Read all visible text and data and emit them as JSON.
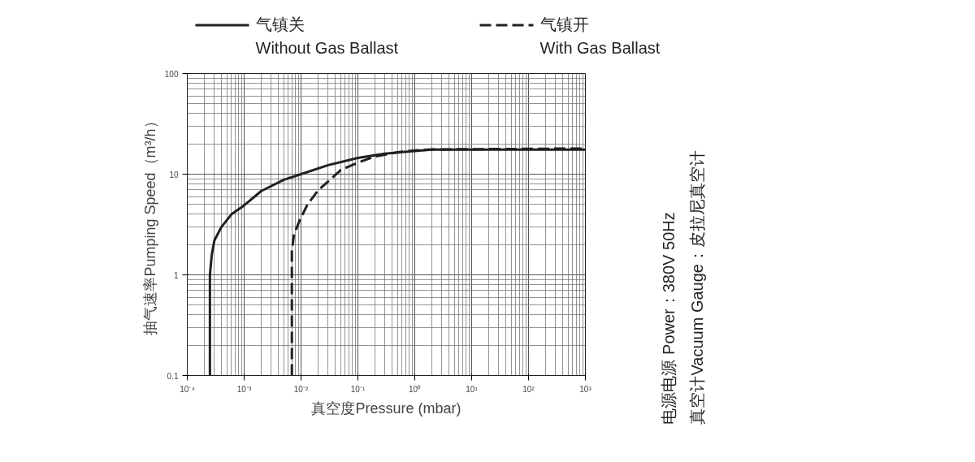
{
  "chart_data": {
    "type": "line",
    "xlabel": "真空度Pressure (mbar)",
    "ylabel": "抽气速率Pumping Speed（m³/h）",
    "log": "xy",
    "grid": true,
    "legend": "top",
    "marker": "none",
    "xlim": [
      0.0001,
      1000
    ],
    "ylim": [
      0.1,
      100
    ],
    "xticks": [
      {
        "value": 0.0001,
        "label": "10⁻⁴"
      },
      {
        "value": 0.001,
        "label": "10⁻³"
      },
      {
        "value": 0.01,
        "label": "10⁻²"
      },
      {
        "value": 0.1,
        "label": "10⁻¹"
      },
      {
        "value": 1,
        "label": "10⁰"
      },
      {
        "value": 10,
        "label": "10¹"
      },
      {
        "value": 100,
        "label": "10²"
      },
      {
        "value": 1000,
        "label": "10³"
      }
    ],
    "yticks": [
      0.1,
      1,
      10,
      100
    ],
    "series": [
      {
        "name": "气镇关\nWithout Gas Ballast",
        "color": "#231f20",
        "line_style": "solid",
        "x": [
          0.00025,
          0.00025,
          0.00027,
          0.0003,
          0.0004,
          0.0006,
          0.001,
          0.002,
          0.005,
          0.01,
          0.03,
          0.1,
          0.3,
          1,
          2,
          1000
        ],
        "values": [
          0.1,
          1,
          1.6,
          2.2,
          3,
          4,
          4.9,
          6.8,
          8.8,
          10,
          12.3,
          14.5,
          16,
          17,
          17.5,
          17.5
        ]
      },
      {
        "name": "气镇开\nWith Gas Ballast",
        "color": "#231f20",
        "line_style": "dashed",
        "x": [
          0.0069,
          0.0069,
          0.0075,
          0.0095,
          0.013,
          0.02,
          0.05,
          0.1,
          0.2,
          0.5,
          1,
          2,
          1000
        ],
        "values": [
          0.1,
          1.7,
          2.5,
          3.5,
          5,
          6.9,
          11,
          13,
          15,
          16.5,
          17.2,
          17.6,
          18
        ]
      }
    ],
    "annotations": [
      "电源电源  Power：380V 50Hz",
      "真空计Vacuum Gauge：皮拉尼真空计"
    ]
  }
}
